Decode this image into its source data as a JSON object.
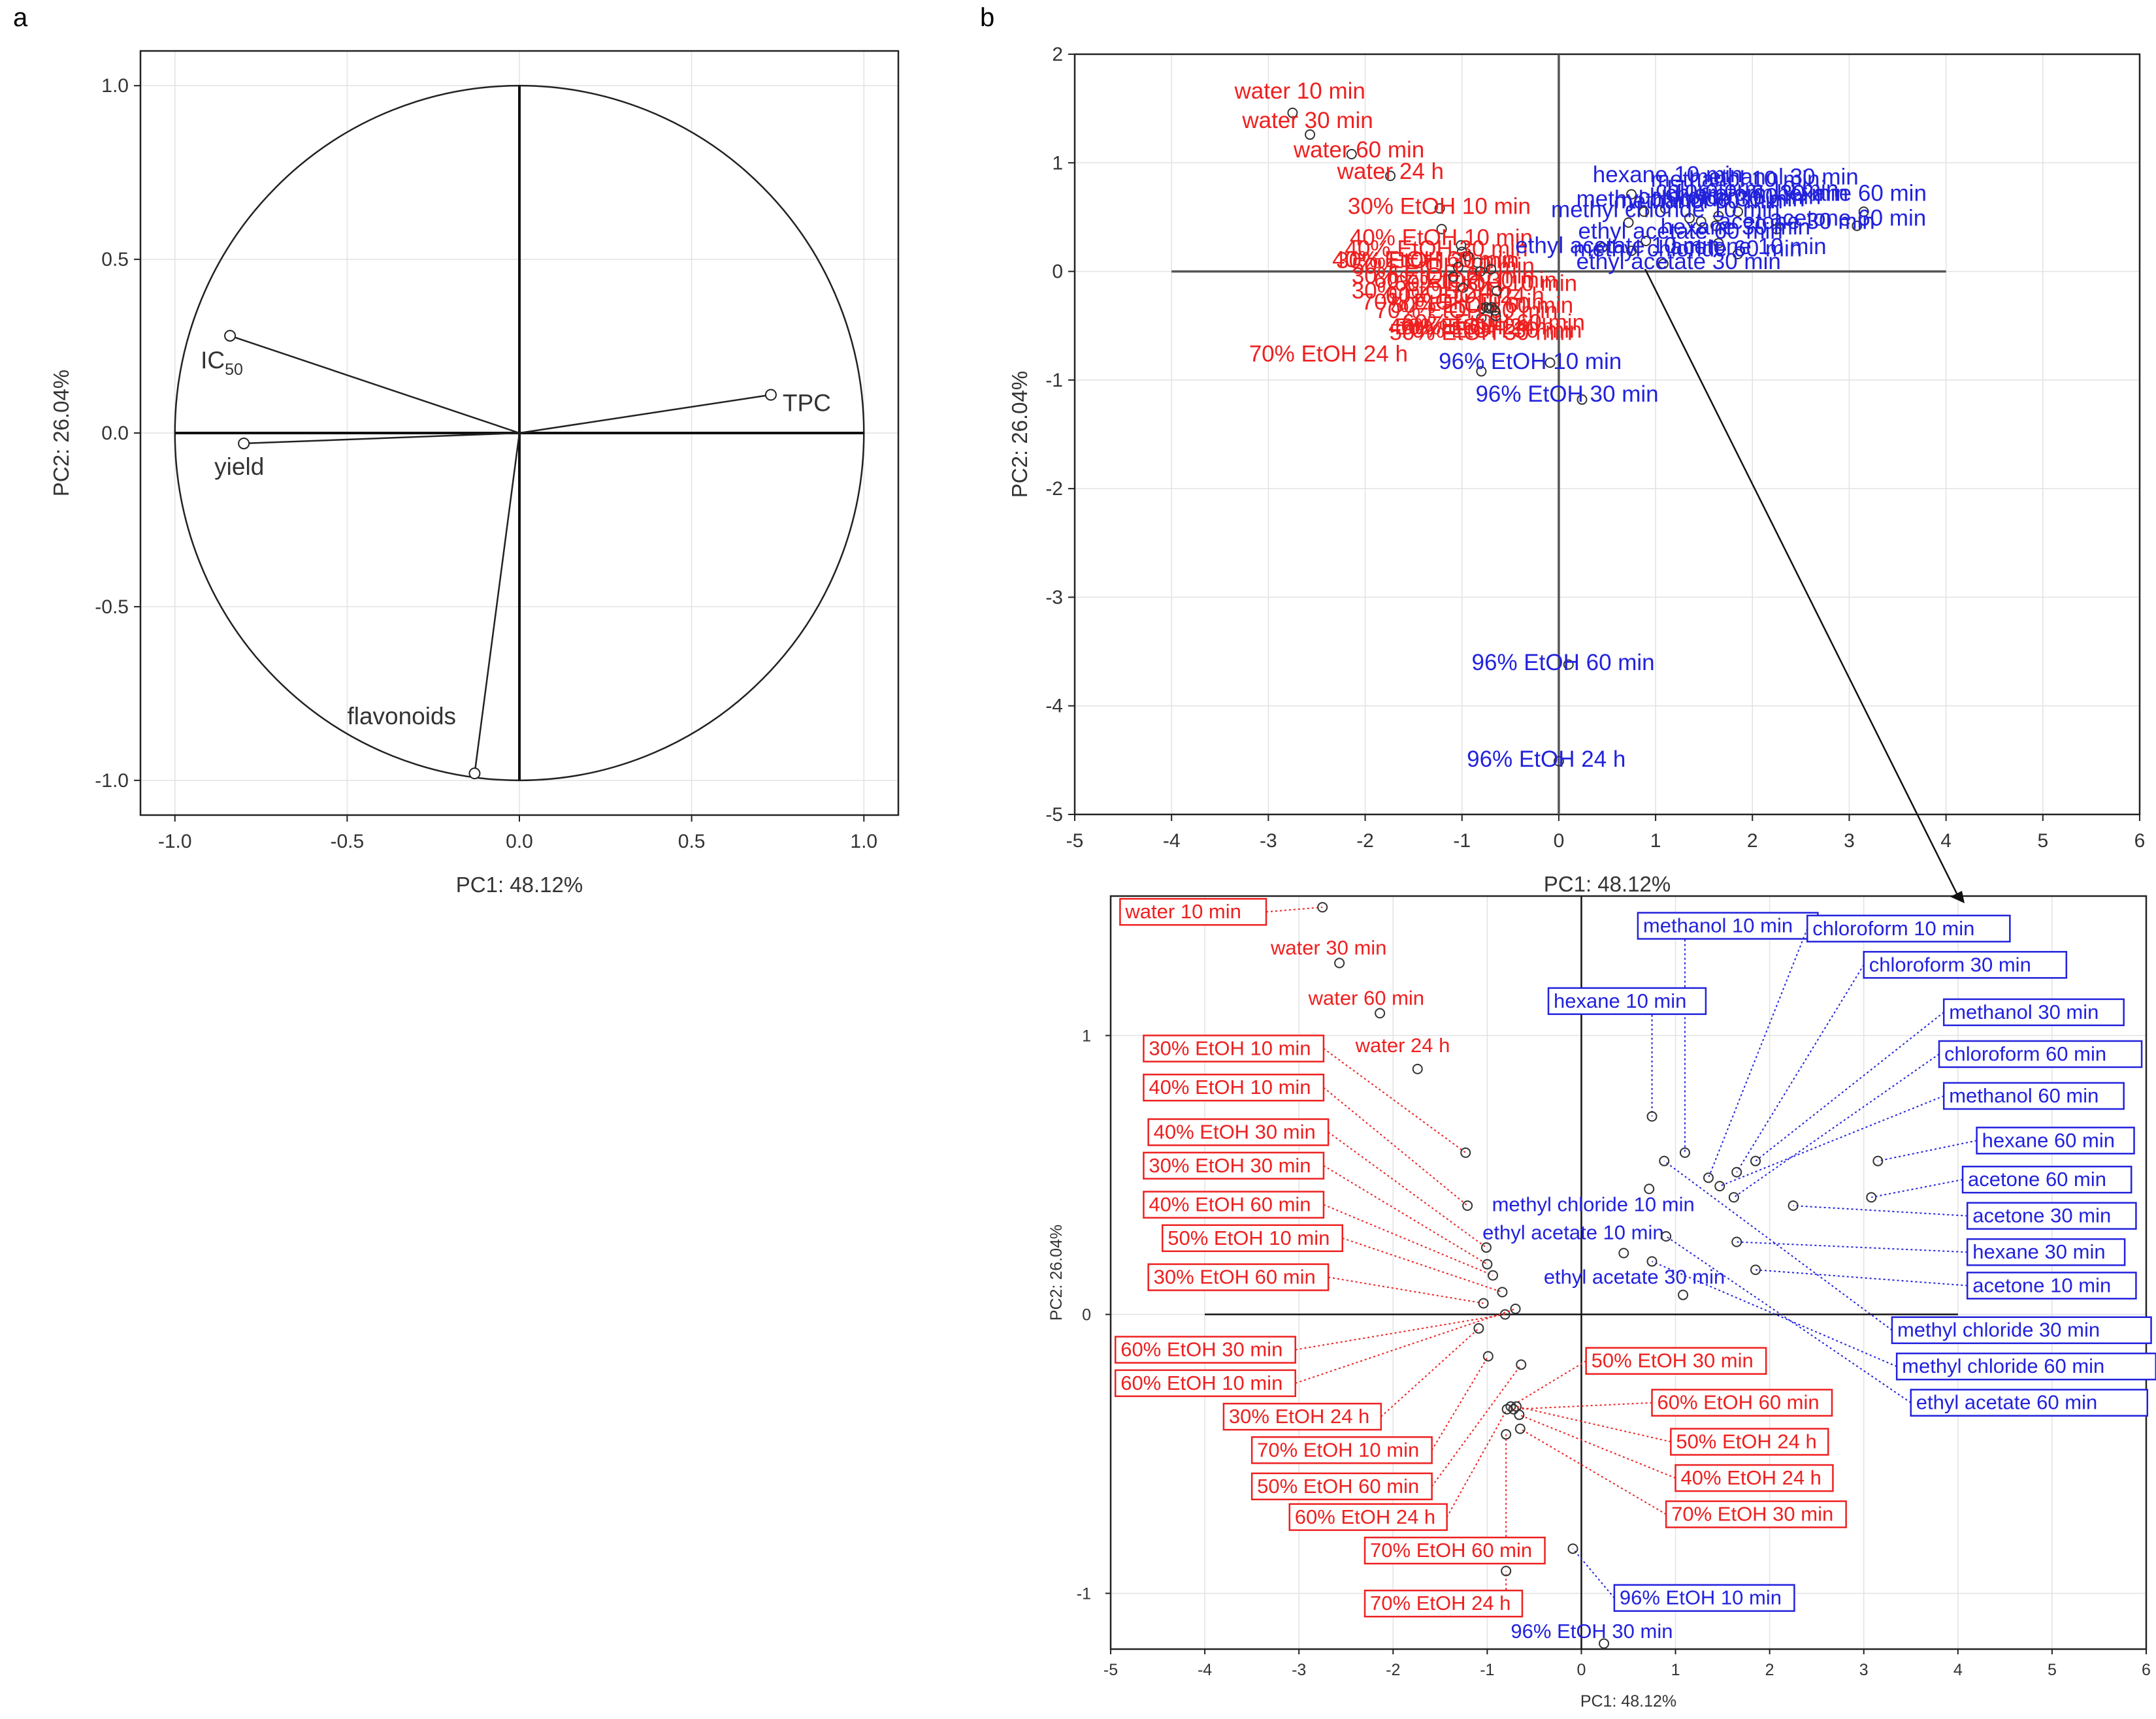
{
  "colors": {
    "red": "#ee2020",
    "blue": "#2222dd",
    "axis": "#222222",
    "grid": "#e2e2e2"
  },
  "chart_data": [
    {
      "id": "a",
      "panel_label": "a",
      "type": "scatter",
      "title": "",
      "xlabel": "PC1: 48.12%",
      "ylabel": "PC2: 26.04%",
      "xlim": [
        -1.1,
        1.1
      ],
      "ylim": [
        -1.1,
        1.1
      ],
      "xticks": [
        "-1.0",
        "-0.5",
        "0.0",
        "0.5",
        "1.0"
      ],
      "yticks": [
        "-1.0",
        "-0.5",
        "0.0",
        "0.5",
        "1.0"
      ],
      "unit_circle": true,
      "variables": [
        {
          "name": "IC50",
          "label_main": "IC",
          "label_sub": "50",
          "x": -0.84,
          "y": 0.28
        },
        {
          "name": "yield",
          "label": "yield",
          "x": -0.8,
          "y": -0.03
        },
        {
          "name": "TPC",
          "label": "TPC",
          "x": 0.73,
          "y": 0.11
        },
        {
          "name": "flavonoids",
          "label": "flavonoids",
          "x": -0.13,
          "y": -0.98
        }
      ]
    },
    {
      "id": "b",
      "panel_label": "b",
      "type": "scatter",
      "title": "",
      "xlabel": "PC1: 48.12%",
      "ylabel": "PC2: 26.04%",
      "xlim": [
        -5,
        6
      ],
      "ylim": [
        -5,
        2
      ],
      "xticks": [
        "-5",
        "-4",
        "-3",
        "-2",
        "-1",
        "0",
        "1",
        "2",
        "3",
        "4",
        "5",
        "6"
      ],
      "yticks": [
        "2",
        "1",
        "0",
        "-1",
        "-2",
        "-3",
        "-4",
        "-5"
      ],
      "points": [
        {
          "label": "water 10 min",
          "x": -2.75,
          "y": 1.46,
          "solvent": "aqueous"
        },
        {
          "label": "water 30 min",
          "x": -2.57,
          "y": 1.26,
          "solvent": "aqueous"
        },
        {
          "label": "water 60 min",
          "x": -2.14,
          "y": 1.08,
          "solvent": "aqueous"
        },
        {
          "label": "water 24 h",
          "x": -1.74,
          "y": 0.88,
          "solvent": "aqueous"
        },
        {
          "label": "30% EtOH 10 min",
          "x": -1.23,
          "y": 0.58,
          "solvent": "aqueous"
        },
        {
          "label": "40% EtOH 10 min",
          "x": -1.21,
          "y": 0.39,
          "solvent": "aqueous"
        },
        {
          "label": "40% EtOH 30 min",
          "x": -1.01,
          "y": 0.24,
          "solvent": "aqueous"
        },
        {
          "label": "30% EtOH 30 min",
          "x": -1.0,
          "y": 0.18,
          "solvent": "aqueous"
        },
        {
          "label": "40% EtOH 60 min",
          "x": -0.94,
          "y": 0.14,
          "solvent": "aqueous"
        },
        {
          "label": "50% EtOH 10 min",
          "x": -0.84,
          "y": 0.08,
          "solvent": "aqueous"
        },
        {
          "label": "30% EtOH 60 min",
          "x": -1.04,
          "y": 0.04,
          "solvent": "aqueous"
        },
        {
          "label": "60% EtOH 30 min",
          "x": -0.81,
          "y": 0.0,
          "solvent": "aqueous"
        },
        {
          "label": "60% EtOH 10 min",
          "x": -0.7,
          "y": 0.02,
          "solvent": "aqueous"
        },
        {
          "label": "30% EtOH 24 h",
          "x": -1.09,
          "y": -0.05,
          "solvent": "aqueous"
        },
        {
          "label": "70% EtOH 10 min",
          "x": -0.99,
          "y": -0.15,
          "solvent": "aqueous"
        },
        {
          "label": "50% EtOH 60 min",
          "x": -0.64,
          "y": -0.18,
          "solvent": "aqueous"
        },
        {
          "label": "60% EtOH 24 h",
          "x": -0.79,
          "y": -0.34,
          "solvent": "aqueous"
        },
        {
          "label": "70% EtOH 60 min",
          "x": -0.8,
          "y": -0.43,
          "solvent": "aqueous"
        },
        {
          "label": "70% EtOH 24 h",
          "x": -0.8,
          "y": -0.92,
          "solvent": "aqueous"
        },
        {
          "label": "50% EtOH 30 min",
          "x": -0.75,
          "y": -0.33,
          "solvent": "aqueous"
        },
        {
          "label": "60% EtOH 60 min",
          "x": -0.72,
          "y": -0.34,
          "solvent": "aqueous"
        },
        {
          "label": "50% EtOH 24 h",
          "x": -0.69,
          "y": -0.33,
          "solvent": "aqueous"
        },
        {
          "label": "40% EtOH 24 h",
          "x": -0.66,
          "y": -0.36,
          "solvent": "aqueous"
        },
        {
          "label": "70% EtOH 30 min",
          "x": -0.65,
          "y": -0.41,
          "solvent": "aqueous"
        },
        {
          "label": "96% EtOH 10 min",
          "x": -0.09,
          "y": -0.84,
          "solvent": "ethanol96"
        },
        {
          "label": "96% EtOH 30 min",
          "x": 0.24,
          "y": -1.18,
          "solvent": "ethanol96"
        },
        {
          "label": "96% EtOH 60 min",
          "x": 0.1,
          "y": -3.62,
          "solvent": "ethanol96"
        },
        {
          "label": "96% EtOH 24 h",
          "x": 0.0,
          "y": -4.51,
          "solvent": "ethanol96"
        },
        {
          "label": "methanol 10 min",
          "x": 1.1,
          "y": 0.58,
          "solvent": "organic"
        },
        {
          "label": "chloroform 10 min",
          "x": 1.35,
          "y": 0.49,
          "solvent": "organic"
        },
        {
          "label": "chloroform 30 min",
          "x": 1.65,
          "y": 0.51,
          "solvent": "organic"
        },
        {
          "label": "hexane 10 min",
          "x": 0.75,
          "y": 0.71,
          "solvent": "organic"
        },
        {
          "label": "methanol 30 min",
          "x": 1.85,
          "y": 0.55,
          "solvent": "organic"
        },
        {
          "label": "chloroform 60 min",
          "x": 1.62,
          "y": 0.42,
          "solvent": "organic"
        },
        {
          "label": "methanol 60 min",
          "x": 1.47,
          "y": 0.46,
          "solvent": "organic"
        },
        {
          "label": "hexane 60 min",
          "x": 3.15,
          "y": 0.55,
          "solvent": "organic"
        },
        {
          "label": "acetone 60 min",
          "x": 3.08,
          "y": 0.42,
          "solvent": "organic"
        },
        {
          "label": "acetone 30 min",
          "x": 2.25,
          "y": 0.39,
          "solvent": "organic"
        },
        {
          "label": "hexane 30 min",
          "x": 1.65,
          "y": 0.26,
          "solvent": "organic"
        },
        {
          "label": "acetone 10 min",
          "x": 1.85,
          "y": 0.16,
          "solvent": "organic"
        },
        {
          "label": "methyl chloride 10 min",
          "x": 0.72,
          "y": 0.45,
          "solvent": "organic"
        },
        {
          "label": "ethyl acetate 10 min",
          "x": 0.45,
          "y": 0.22,
          "solvent": "organic"
        },
        {
          "label": "ethyl acetate 30 min",
          "x": 1.08,
          "y": 0.07,
          "solvent": "organic"
        },
        {
          "label": "methyl chloride 30 min",
          "x": 0.88,
          "y": 0.55,
          "solvent": "organic"
        },
        {
          "label": "methyl chloride 60 min",
          "x": 0.75,
          "y": 0.19,
          "solvent": "organic"
        },
        {
          "label": "ethyl acetate 60 min",
          "x": 0.9,
          "y": 0.28,
          "solvent": "organic"
        }
      ]
    },
    {
      "id": "b-zoom",
      "type": "scatter",
      "title": "",
      "xlabel": "PC1: 48.12%",
      "ylabel": "PC2: 26.04%",
      "xlim": [
        -5,
        6
      ],
      "ylim": [
        -1.2,
        1.5
      ],
      "xticks": [
        "-5",
        "-4",
        "-3",
        "-2",
        "-1",
        "0",
        "1",
        "2",
        "3",
        "4",
        "5",
        "6"
      ],
      "yticks": [
        "1",
        "0",
        "-1"
      ]
    }
  ]
}
